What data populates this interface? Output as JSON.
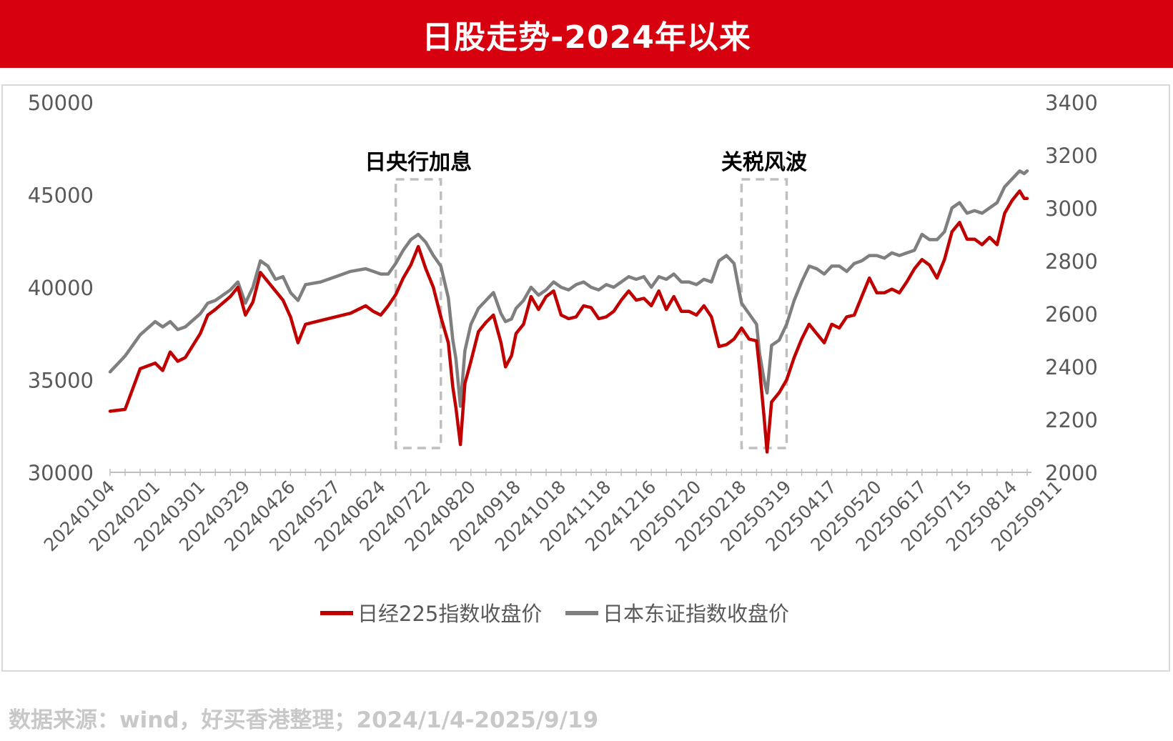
{
  "banner": {
    "title": "日股走势-2024年以来"
  },
  "source_note": "数据来源：wind，好买香港整理；2024/1/4-2025/9/19",
  "colors": {
    "banner": "#d7000f",
    "nikkei": "#c00000",
    "topix": "#7f7f7f",
    "axis_text": "#595959",
    "box": "#bfbfbf"
  },
  "chart_data": {
    "type": "line",
    "title": "",
    "x_ticks": [
      "20240104",
      "20240201",
      "20240301",
      "20240329",
      "20240426",
      "20240527",
      "20240624",
      "20240722",
      "20240820",
      "20240918",
      "20241018",
      "20241118",
      "20241216",
      "20250120",
      "20250218",
      "20250319",
      "20250417",
      "20250520",
      "20250617",
      "20250715",
      "20250814",
      "20250911"
    ],
    "y_left": {
      "min": 30000,
      "max": 50000,
      "ticks": [
        "30000",
        "35000",
        "40000",
        "45000",
        "50000"
      ]
    },
    "y_right": {
      "min": 2000,
      "max": 3400,
      "ticks": [
        "2000",
        "2200",
        "2400",
        "2600",
        "2800",
        "3000",
        "3200",
        "3400"
      ]
    },
    "series": [
      {
        "name": "日经225指数收盘价",
        "axis": "left",
        "color": "#c00000",
        "points": [
          [
            0,
            33300
          ],
          [
            1,
            33400
          ],
          [
            2,
            35600
          ],
          [
            3,
            35900
          ],
          [
            3.5,
            35500
          ],
          [
            4,
            36500
          ],
          [
            4.5,
            36000
          ],
          [
            5,
            36200
          ],
          [
            6,
            37500
          ],
          [
            6.5,
            38500
          ],
          [
            7,
            38800
          ],
          [
            8,
            39500
          ],
          [
            8.5,
            40000
          ],
          [
            9,
            38500
          ],
          [
            9.5,
            39200
          ],
          [
            10,
            40800
          ],
          [
            10.5,
            40300
          ],
          [
            11,
            39800
          ],
          [
            11.5,
            39300
          ],
          [
            12,
            38400
          ],
          [
            12.5,
            37000
          ],
          [
            13,
            38000
          ],
          [
            14,
            38200
          ],
          [
            15,
            38400
          ],
          [
            16,
            38600
          ],
          [
            17,
            39000
          ],
          [
            17.5,
            38700
          ],
          [
            18,
            38500
          ],
          [
            18.5,
            39000
          ],
          [
            19,
            39600
          ],
          [
            19.5,
            40500
          ],
          [
            20,
            41200
          ],
          [
            20.5,
            42200
          ],
          [
            21,
            41000
          ],
          [
            21.5,
            40000
          ],
          [
            22,
            38400
          ],
          [
            22.5,
            37000
          ],
          [
            22.8,
            34600
          ],
          [
            23,
            33500
          ],
          [
            23.3,
            31500
          ],
          [
            23.6,
            34800
          ],
          [
            24,
            36000
          ],
          [
            24.5,
            37600
          ],
          [
            25,
            38100
          ],
          [
            25.5,
            38500
          ],
          [
            26,
            37000
          ],
          [
            26.3,
            35700
          ],
          [
            26.7,
            36300
          ],
          [
            27,
            37500
          ],
          [
            27.5,
            38000
          ],
          [
            28,
            39500
          ],
          [
            28.5,
            38800
          ],
          [
            29,
            39500
          ],
          [
            29.5,
            39800
          ],
          [
            30,
            38500
          ],
          [
            30.5,
            38300
          ],
          [
            31,
            38400
          ],
          [
            31.5,
            39000
          ],
          [
            32,
            38900
          ],
          [
            32.5,
            38300
          ],
          [
            33,
            38400
          ],
          [
            33.5,
            38700
          ],
          [
            34,
            39300
          ],
          [
            34.5,
            39800
          ],
          [
            35,
            39300
          ],
          [
            35.5,
            39400
          ],
          [
            36,
            39000
          ],
          [
            36.5,
            39800
          ],
          [
            37,
            38800
          ],
          [
            37.5,
            39500
          ],
          [
            38,
            38700
          ],
          [
            38.5,
            38700
          ],
          [
            39,
            38500
          ],
          [
            39.5,
            39000
          ],
          [
            40,
            38400
          ],
          [
            40.5,
            36800
          ],
          [
            41,
            36900
          ],
          [
            41.5,
            37200
          ],
          [
            42,
            37800
          ],
          [
            42.5,
            37200
          ],
          [
            43,
            37100
          ],
          [
            43.2,
            35600
          ],
          [
            43.5,
            33000
          ],
          [
            43.7,
            31100
          ],
          [
            44,
            33800
          ],
          [
            44.5,
            34300
          ],
          [
            45,
            35000
          ],
          [
            45.5,
            36200
          ],
          [
            46,
            37200
          ],
          [
            46.5,
            38000
          ],
          [
            47,
            37500
          ],
          [
            47.5,
            37000
          ],
          [
            48,
            38000
          ],
          [
            48.5,
            37800
          ],
          [
            49,
            38400
          ],
          [
            49.5,
            38500
          ],
          [
            50,
            39500
          ],
          [
            50.5,
            40500
          ],
          [
            51,
            39700
          ],
          [
            51.5,
            39700
          ],
          [
            52,
            39900
          ],
          [
            52.5,
            39700
          ],
          [
            53,
            40300
          ],
          [
            53.5,
            41000
          ],
          [
            54,
            41500
          ],
          [
            54.5,
            41200
          ],
          [
            55,
            40500
          ],
          [
            55.5,
            41500
          ],
          [
            56,
            43000
          ],
          [
            56.5,
            43500
          ],
          [
            57,
            42600
          ],
          [
            57.5,
            42600
          ],
          [
            58,
            42300
          ],
          [
            58.5,
            42700
          ],
          [
            59,
            42300
          ],
          [
            59.5,
            44000
          ],
          [
            60,
            44700
          ],
          [
            60.5,
            45200
          ],
          [
            60.8,
            44800
          ],
          [
            61,
            44800
          ]
        ]
      },
      {
        "name": "日本东证指数收盘价",
        "axis": "right",
        "color": "#7f7f7f",
        "points": [
          [
            0,
            2380
          ],
          [
            1,
            2440
          ],
          [
            2,
            2520
          ],
          [
            3,
            2570
          ],
          [
            3.5,
            2550
          ],
          [
            4,
            2570
          ],
          [
            4.5,
            2540
          ],
          [
            5,
            2550
          ],
          [
            6,
            2600
          ],
          [
            6.5,
            2640
          ],
          [
            7,
            2650
          ],
          [
            8,
            2690
          ],
          [
            8.5,
            2720
          ],
          [
            9,
            2640
          ],
          [
            9.5,
            2700
          ],
          [
            10,
            2800
          ],
          [
            10.5,
            2780
          ],
          [
            11,
            2730
          ],
          [
            11.5,
            2740
          ],
          [
            12,
            2680
          ],
          [
            12.5,
            2650
          ],
          [
            13,
            2710
          ],
          [
            14,
            2720
          ],
          [
            15,
            2740
          ],
          [
            16,
            2760
          ],
          [
            17,
            2770
          ],
          [
            17.5,
            2760
          ],
          [
            18,
            2750
          ],
          [
            18.5,
            2750
          ],
          [
            19,
            2790
          ],
          [
            19.5,
            2840
          ],
          [
            20,
            2880
          ],
          [
            20.5,
            2900
          ],
          [
            21,
            2870
          ],
          [
            21.5,
            2820
          ],
          [
            22,
            2780
          ],
          [
            22.5,
            2660
          ],
          [
            22.8,
            2500
          ],
          [
            23,
            2430
          ],
          [
            23.3,
            2250
          ],
          [
            23.6,
            2460
          ],
          [
            24,
            2560
          ],
          [
            24.5,
            2620
          ],
          [
            25,
            2650
          ],
          [
            25.5,
            2680
          ],
          [
            26,
            2600
          ],
          [
            26.3,
            2570
          ],
          [
            26.7,
            2580
          ],
          [
            27,
            2620
          ],
          [
            27.5,
            2650
          ],
          [
            28,
            2700
          ],
          [
            28.5,
            2670
          ],
          [
            29,
            2690
          ],
          [
            29.5,
            2720
          ],
          [
            30,
            2700
          ],
          [
            30.5,
            2690
          ],
          [
            31,
            2710
          ],
          [
            31.5,
            2720
          ],
          [
            32,
            2700
          ],
          [
            32.5,
            2690
          ],
          [
            33,
            2710
          ],
          [
            33.5,
            2700
          ],
          [
            34,
            2720
          ],
          [
            34.5,
            2740
          ],
          [
            35,
            2730
          ],
          [
            35.5,
            2740
          ],
          [
            36,
            2700
          ],
          [
            36.5,
            2740
          ],
          [
            37,
            2730
          ],
          [
            37.5,
            2750
          ],
          [
            38,
            2720
          ],
          [
            38.5,
            2720
          ],
          [
            39,
            2710
          ],
          [
            39.5,
            2730
          ],
          [
            40,
            2720
          ],
          [
            40.5,
            2800
          ],
          [
            41,
            2820
          ],
          [
            41.5,
            2790
          ],
          [
            42,
            2640
          ],
          [
            42.5,
            2600
          ],
          [
            43,
            2560
          ],
          [
            43.2,
            2450
          ],
          [
            43.5,
            2350
          ],
          [
            43.7,
            2300
          ],
          [
            44,
            2480
          ],
          [
            44.5,
            2500
          ],
          [
            45,
            2560
          ],
          [
            45.5,
            2650
          ],
          [
            46,
            2720
          ],
          [
            46.5,
            2780
          ],
          [
            47,
            2770
          ],
          [
            47.5,
            2750
          ],
          [
            48,
            2780
          ],
          [
            48.5,
            2780
          ],
          [
            49,
            2760
          ],
          [
            49.5,
            2790
          ],
          [
            50,
            2800
          ],
          [
            50.5,
            2820
          ],
          [
            51,
            2820
          ],
          [
            51.5,
            2810
          ],
          [
            52,
            2830
          ],
          [
            52.5,
            2820
          ],
          [
            53,
            2830
          ],
          [
            53.5,
            2840
          ],
          [
            54,
            2900
          ],
          [
            54.5,
            2880
          ],
          [
            55,
            2880
          ],
          [
            55.5,
            2910
          ],
          [
            56,
            3000
          ],
          [
            56.5,
            3020
          ],
          [
            57,
            2980
          ],
          [
            57.5,
            2990
          ],
          [
            58,
            2980
          ],
          [
            58.5,
            3000
          ],
          [
            59,
            3020
          ],
          [
            59.5,
            3080
          ],
          [
            60,
            3110
          ],
          [
            60.5,
            3140
          ],
          [
            60.8,
            3130
          ],
          [
            61,
            3140
          ]
        ]
      }
    ],
    "annotations": [
      {
        "label": "日央行加息",
        "x0": 19,
        "x1": 22
      },
      {
        "label": "关税风波",
        "x0": 42,
        "x1": 45
      }
    ],
    "legend": {
      "position": "bottom",
      "items": [
        "日经225指数收盘价",
        "日本东证指数收盘价"
      ]
    },
    "grid": false
  }
}
